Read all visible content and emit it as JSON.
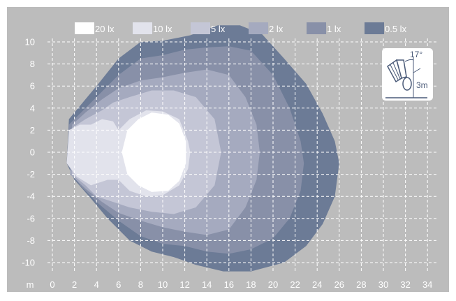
{
  "chart_data": {
    "type": "area",
    "title": "",
    "xlabel": "m",
    "ylabel": "",
    "xlim": [
      0,
      34
    ],
    "ylim": [
      -10,
      10
    ],
    "x_ticks": [
      0,
      2,
      4,
      6,
      8,
      10,
      12,
      14,
      16,
      18,
      20,
      22,
      24,
      26,
      28,
      30,
      32,
      34
    ],
    "y_ticks": [
      10,
      8,
      6,
      4,
      2,
      0,
      -2,
      -4,
      -6,
      -8,
      -10
    ],
    "grid": true,
    "legend_position": "top",
    "inset": {
      "angle_label": "17°",
      "height_label": "3m"
    },
    "series": [
      {
        "name": "0.5 lx",
        "color": "#6c7b96",
        "points": [
          [
            1.5,
            3
          ],
          [
            2.5,
            4.2
          ],
          [
            4,
            6
          ],
          [
            6,
            8.5
          ],
          [
            8,
            10
          ],
          [
            10,
            10.1
          ],
          [
            12.5,
            10.6
          ],
          [
            15,
            11.5
          ],
          [
            17,
            11.5
          ],
          [
            19,
            10.7
          ],
          [
            21,
            8.5
          ],
          [
            23,
            6.2
          ],
          [
            24.5,
            3.5
          ],
          [
            25.6,
            1
          ],
          [
            26,
            -1
          ],
          [
            25.6,
            -4
          ],
          [
            24.5,
            -6.5
          ],
          [
            23,
            -8.5
          ],
          [
            21,
            -10
          ],
          [
            18,
            -10.8
          ],
          [
            15.5,
            -10.8
          ],
          [
            13,
            -10.2
          ],
          [
            11,
            -9.5
          ],
          [
            9,
            -9
          ],
          [
            7,
            -8
          ],
          [
            5,
            -6
          ],
          [
            3.5,
            -4.2
          ],
          [
            2,
            -2.5
          ],
          [
            1.3,
            -1
          ]
        ]
      },
      {
        "name": "1 lx",
        "color": "#8890a8",
        "points": [
          [
            1.5,
            2.5
          ],
          [
            2.5,
            3.5
          ],
          [
            4,
            5
          ],
          [
            6,
            7
          ],
          [
            8,
            8.5
          ],
          [
            10,
            8.8
          ],
          [
            12,
            9.3
          ],
          [
            14,
            9.5
          ],
          [
            16,
            9.6
          ],
          [
            18,
            9.2
          ],
          [
            20,
            7
          ],
          [
            21.5,
            4
          ],
          [
            22.5,
            1
          ],
          [
            22.8,
            -1
          ],
          [
            22.5,
            -3.5
          ],
          [
            21.5,
            -6
          ],
          [
            20,
            -7.8
          ],
          [
            18,
            -8.8
          ],
          [
            16,
            -9.2
          ],
          [
            14,
            -9
          ],
          [
            12,
            -8.5
          ],
          [
            10,
            -8.3
          ],
          [
            8,
            -7.6
          ],
          [
            6,
            -6.2
          ],
          [
            4,
            -4.5
          ],
          [
            2.5,
            -3
          ],
          [
            1.3,
            -1
          ]
        ]
      },
      {
        "name": "2 lx",
        "color": "#a5aabf",
        "points": [
          [
            1.8,
            2.5
          ],
          [
            3,
            3.6
          ],
          [
            4.5,
            4.8
          ],
          [
            6,
            5.8
          ],
          [
            8,
            6.5
          ],
          [
            10,
            6.8
          ],
          [
            12,
            7.2
          ],
          [
            14,
            7.5
          ],
          [
            16,
            7
          ],
          [
            17.5,
            5
          ],
          [
            18.5,
            2.5
          ],
          [
            18.8,
            0
          ],
          [
            18.5,
            -2.5
          ],
          [
            17.5,
            -5
          ],
          [
            16,
            -7
          ],
          [
            14,
            -7.5
          ],
          [
            12,
            -7.2
          ],
          [
            10,
            -6.8
          ],
          [
            8,
            -6.2
          ],
          [
            6,
            -5.5
          ],
          [
            4.5,
            -4.5
          ],
          [
            3,
            -3.3
          ],
          [
            1.6,
            -2
          ]
        ]
      },
      {
        "name": "5 lx",
        "color": "#c4c6d6",
        "points": [
          [
            1.8,
            2.2
          ],
          [
            3,
            3
          ],
          [
            4.5,
            3.8
          ],
          [
            5.5,
            4.5
          ],
          [
            7,
            5
          ],
          [
            9,
            5.6
          ],
          [
            11,
            5.6
          ],
          [
            13,
            5
          ],
          [
            14.7,
            3
          ],
          [
            15.3,
            0
          ],
          [
            14.7,
            -3
          ],
          [
            13,
            -5
          ],
          [
            11,
            -5.6
          ],
          [
            9,
            -5.4
          ],
          [
            7,
            -5
          ],
          [
            5.5,
            -4.5
          ],
          [
            4,
            -4
          ],
          [
            3,
            -3
          ],
          [
            1.8,
            -2
          ]
        ]
      },
      {
        "name": "10 lx",
        "color": "#e2e3ec",
        "points": [
          [
            1.5,
            2
          ],
          [
            2.5,
            2.5
          ],
          [
            3.5,
            2.5
          ],
          [
            4.5,
            3
          ],
          [
            5.5,
            2.8
          ],
          [
            6,
            2
          ],
          [
            7,
            3
          ],
          [
            8.5,
            3.8
          ],
          [
            10,
            3.7
          ],
          [
            11.5,
            3
          ],
          [
            12.3,
            1
          ],
          [
            12.5,
            0
          ],
          [
            12.3,
            -1.5
          ],
          [
            11.5,
            -3
          ],
          [
            10,
            -3.9
          ],
          [
            8.5,
            -4
          ],
          [
            7,
            -3.5
          ],
          [
            6,
            -2.5
          ],
          [
            5,
            -2.5
          ],
          [
            3.5,
            -3
          ],
          [
            2.2,
            -2.2
          ],
          [
            1.3,
            -1
          ]
        ]
      },
      {
        "name": "20 lx",
        "color": "#ffffff",
        "points": [
          [
            6.8,
            2
          ],
          [
            7.8,
            3
          ],
          [
            9,
            3.6
          ],
          [
            10.5,
            3.4
          ],
          [
            11.5,
            2.6
          ],
          [
            12.1,
            1
          ],
          [
            12.1,
            -1
          ],
          [
            11.5,
            -2.6
          ],
          [
            10.5,
            -3.5
          ],
          [
            9,
            -3.6
          ],
          [
            7.8,
            -3
          ],
          [
            6.8,
            -2
          ],
          [
            6.3,
            0
          ]
        ]
      }
    ]
  }
}
